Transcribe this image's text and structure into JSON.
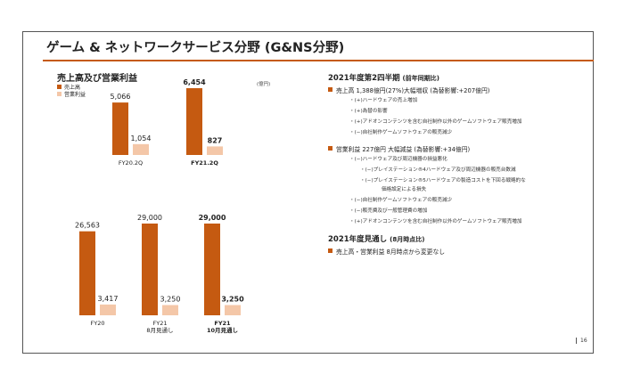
{
  "slide": {
    "title": "ゲーム & ネットワークサービス分野 (G&NS分野)",
    "page_number": "16"
  },
  "left": {
    "section_title": "売上高及び営業利益",
    "unit": "(億円)",
    "legend": [
      {
        "label": "売上高",
        "color": "#c55a11"
      },
      {
        "label": "営業利益",
        "color": "#f4c7a8"
      }
    ]
  },
  "chart_data": [
    {
      "type": "bar",
      "title": "",
      "categories": [
        "FY20.2Q",
        "FY21.2Q"
      ],
      "category_bold": [
        false,
        true
      ],
      "series": [
        {
          "name": "売上高",
          "values": [
            5066,
            6454
          ],
          "labels": [
            "5,066",
            "6,454"
          ],
          "color": "#c55a11"
        },
        {
          "name": "営業利益",
          "values": [
            1054,
            827
          ],
          "labels": [
            "1,054",
            "827"
          ],
          "color": "#f4c7a8"
        }
      ],
      "bold_last_category_labels": true
    },
    {
      "type": "bar",
      "title": "",
      "categories": [
        "FY20",
        "FY21\n8月見通し",
        "FY21\n10月見通し"
      ],
      "category_bold": [
        false,
        false,
        true
      ],
      "series": [
        {
          "name": "売上高",
          "values": [
            26563,
            29000,
            29000
          ],
          "labels": [
            "26,563",
            "29,000",
            "29,000"
          ],
          "color": "#c55a11"
        },
        {
          "name": "営業利益",
          "values": [
            3417,
            3250,
            3250
          ],
          "labels": [
            "3,417",
            "3,250",
            "3,250"
          ],
          "color": "#f4c7a8"
        }
      ],
      "bold_last_category_labels": true
    }
  ],
  "right": {
    "q2_heading": "2021年度第2四半期",
    "q2_heading_note": "(前年同期比)",
    "sales_line": "売上高  1,388億円(27%)大幅増収  (為替影響:+207億円)",
    "sales_items": [
      "・(+)ハードウェアの売上増加",
      "・(+)為替の影響",
      "・(+)アドオンコンテンツを含む自社制作以外のゲームソフトウェア販売増加",
      "・(−)自社制作ゲームソフトウェアの販売減少"
    ],
    "op_line": "営業利益  227億円  大幅減益  (為替影響:+34億円)",
    "op_items": [
      "・(−)ハードウェア及び周辺機器の損益悪化",
      "・(−)プレイステーション®4ハードウェア及び周辺機器の販売台数減",
      "・(−)プレイステーション®5ハードウェアの製造コストを下回る戦略的な",
      "価格設定による損失",
      "・(−)自社制作ゲームソフトウェアの販売減少",
      "・(−)販売費及び一般管理費の増加",
      "・(+)アドオンコンテンツを含む自社制作以外のゲームソフトウェア販売増加"
    ],
    "fy_heading": "2021年度見通し",
    "fy_heading_note": "(8月時点比)",
    "fy_line": "売上高・営業利益  8月時点から変更なし"
  }
}
